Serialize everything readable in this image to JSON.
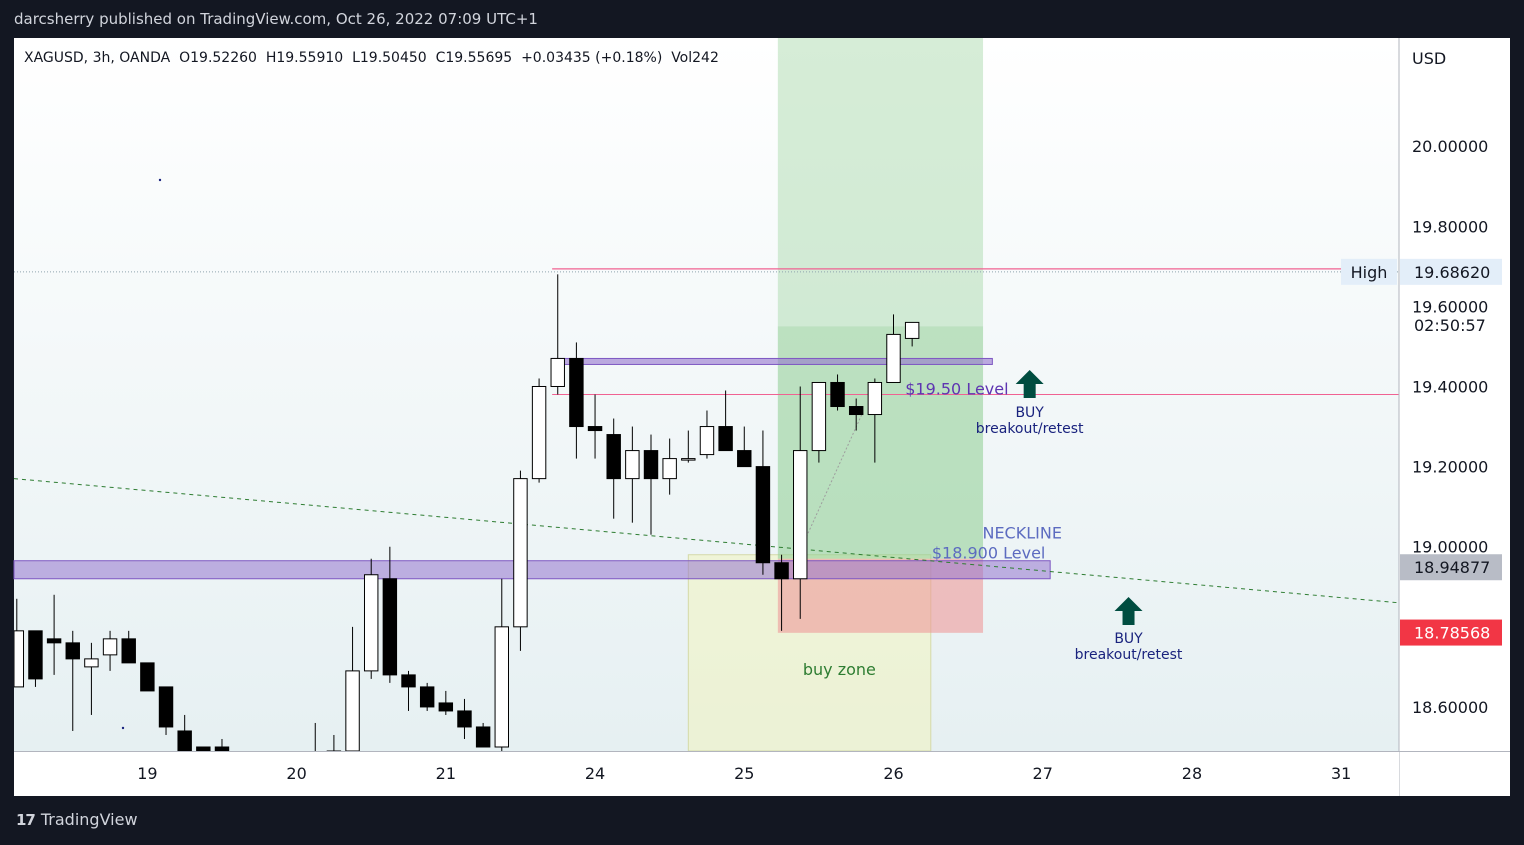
{
  "header": {
    "published": "darcsherry published on TradingView.com, Oct 26, 2022 07:09 UTC+1"
  },
  "legend": {
    "symbol": "XAGUSD, 3h, OANDA",
    "open": "O19.52260",
    "high": "H19.55910",
    "low": "L19.50450",
    "close": "C19.55695",
    "change": "+0.03435 (+0.18%)",
    "volume": "Vol242"
  },
  "footer": {
    "brand": "TradingView",
    "logo": "tradingview-logo-icon"
  },
  "chart_data": {
    "type": "candlestick",
    "currency": "USD",
    "y_axis": {
      "ticks": [
        "20.00000",
        "19.80000",
        "19.60000",
        "19.40000",
        "19.20000",
        "19.00000",
        "18.60000"
      ],
      "range": [
        18.49,
        20.27
      ]
    },
    "x_axis": {
      "ticks": [
        {
          "label": "19",
          "i": 8
        },
        {
          "label": "20",
          "i": 16
        },
        {
          "label": "21",
          "i": 24
        },
        {
          "label": "24",
          "i": 32
        },
        {
          "label": "25",
          "i": 40
        },
        {
          "label": "26",
          "i": 48
        },
        {
          "label": "27",
          "i": 56
        },
        {
          "label": "28",
          "i": 64
        },
        {
          "label": "31",
          "i": 72
        }
      ],
      "visible_index_range": [
        0.85,
        75.1
      ]
    },
    "candles": [
      {
        "i": 0,
        "o": 18.79,
        "h": 18.79,
        "l": 18.64,
        "c": 18.64
      },
      {
        "i": 1,
        "o": 18.65,
        "h": 18.87,
        "l": 18.65,
        "c": 18.79
      },
      {
        "i": 2,
        "o": 18.79,
        "h": 18.79,
        "l": 18.65,
        "c": 18.67
      },
      {
        "i": 3,
        "o": 18.77,
        "h": 18.88,
        "l": 18.68,
        "c": 18.76
      },
      {
        "i": 4,
        "o": 18.76,
        "h": 18.79,
        "l": 18.54,
        "c": 18.72
      },
      {
        "i": 5,
        "o": 18.7,
        "h": 18.76,
        "l": 18.58,
        "c": 18.72
      },
      {
        "i": 6,
        "o": 18.73,
        "h": 18.79,
        "l": 18.69,
        "c": 18.77
      },
      {
        "i": 7,
        "o": 18.77,
        "h": 18.79,
        "l": 18.71,
        "c": 18.71
      },
      {
        "i": 8,
        "o": 18.71,
        "h": 18.71,
        "l": 18.64,
        "c": 18.64
      },
      {
        "i": 9,
        "o": 18.65,
        "h": 18.65,
        "l": 18.53,
        "c": 18.55
      },
      {
        "i": 10,
        "o": 18.54,
        "h": 18.58,
        "l": 18.43,
        "c": 18.46
      },
      {
        "i": 11,
        "o": 18.5,
        "h": 18.5,
        "l": 18.49,
        "c": 18.49
      },
      {
        "i": 12,
        "o": 18.5,
        "h": 18.52,
        "l": 18.49,
        "c": 18.49
      },
      {
        "i": 13,
        "o": 18.48,
        "h": 18.49,
        "l": 18.45,
        "c": 18.46
      },
      {
        "i": 14,
        "o": 18.47,
        "h": 18.48,
        "l": 18.45,
        "c": 18.46
      },
      {
        "i": 15,
        "o": 18.47,
        "h": 18.48,
        "l": 18.46,
        "c": 18.47
      },
      {
        "i": 16,
        "o": 18.47,
        "h": 18.48,
        "l": 18.46,
        "c": 18.47
      },
      {
        "i": 17,
        "o": 18.47,
        "h": 18.56,
        "l": 18.46,
        "c": 18.48
      },
      {
        "i": 18,
        "o": 18.48,
        "h": 18.53,
        "l": 18.46,
        "c": 18.49
      },
      {
        "i": 19,
        "o": 18.49,
        "h": 18.8,
        "l": 18.47,
        "c": 18.69
      },
      {
        "i": 20,
        "o": 18.69,
        "h": 18.97,
        "l": 18.67,
        "c": 18.93
      },
      {
        "i": 21,
        "o": 18.92,
        "h": 19.0,
        "l": 18.66,
        "c": 18.68
      },
      {
        "i": 22,
        "o": 18.68,
        "h": 18.69,
        "l": 18.59,
        "c": 18.65
      },
      {
        "i": 23,
        "o": 18.65,
        "h": 18.66,
        "l": 18.59,
        "c": 18.6
      },
      {
        "i": 24,
        "o": 18.61,
        "h": 18.64,
        "l": 18.58,
        "c": 18.59
      },
      {
        "i": 25,
        "o": 18.59,
        "h": 18.62,
        "l": 18.52,
        "c": 18.55
      },
      {
        "i": 26,
        "o": 18.55,
        "h": 18.56,
        "l": 18.5,
        "c": 18.5
      },
      {
        "i": 27,
        "o": 18.5,
        "h": 18.92,
        "l": 18.47,
        "c": 18.8
      },
      {
        "i": 28,
        "o": 18.8,
        "h": 19.19,
        "l": 18.74,
        "c": 19.17
      },
      {
        "i": 29,
        "o": 19.17,
        "h": 19.42,
        "l": 19.16,
        "c": 19.4
      },
      {
        "i": 30,
        "o": 19.4,
        "h": 19.68,
        "l": 19.38,
        "c": 19.47
      },
      {
        "i": 31,
        "o": 19.47,
        "h": 19.51,
        "l": 19.22,
        "c": 19.3
      },
      {
        "i": 32,
        "o": 19.3,
        "h": 19.38,
        "l": 19.22,
        "c": 19.29
      },
      {
        "i": 33,
        "o": 19.28,
        "h": 19.32,
        "l": 19.07,
        "c": 19.17
      },
      {
        "i": 34,
        "o": 19.17,
        "h": 19.3,
        "l": 19.06,
        "c": 19.24
      },
      {
        "i": 35,
        "o": 19.24,
        "h": 19.28,
        "l": 19.03,
        "c": 19.17
      },
      {
        "i": 36,
        "o": 19.17,
        "h": 19.27,
        "l": 19.13,
        "c": 19.22
      },
      {
        "i": 37,
        "o": 19.22,
        "h": 19.29,
        "l": 19.21,
        "c": 19.22
      },
      {
        "i": 38,
        "o": 19.23,
        "h": 19.34,
        "l": 19.22,
        "c": 19.3
      },
      {
        "i": 39,
        "o": 19.3,
        "h": 19.39,
        "l": 19.25,
        "c": 19.24
      },
      {
        "i": 40,
        "o": 19.24,
        "h": 19.3,
        "l": 19.2,
        "c": 19.2
      },
      {
        "i": 41,
        "o": 19.2,
        "h": 19.29,
        "l": 18.93,
        "c": 18.96
      },
      {
        "i": 42,
        "o": 18.96,
        "h": 18.98,
        "l": 18.79,
        "c": 18.92
      },
      {
        "i": 43,
        "o": 18.92,
        "h": 19.4,
        "l": 18.82,
        "c": 19.24
      },
      {
        "i": 44,
        "o": 19.24,
        "h": 19.41,
        "l": 19.21,
        "c": 19.41
      },
      {
        "i": 45,
        "o": 19.41,
        "h": 19.43,
        "l": 19.34,
        "c": 19.35
      },
      {
        "i": 46,
        "o": 19.35,
        "h": 19.37,
        "l": 19.29,
        "c": 19.33
      },
      {
        "i": 47,
        "o": 19.33,
        "h": 19.42,
        "l": 19.21,
        "c": 19.41
      },
      {
        "i": 48,
        "o": 19.41,
        "h": 19.58,
        "l": 19.41,
        "c": 19.53
      },
      {
        "i": 49,
        "o": 19.52,
        "h": 19.56,
        "l": 19.5,
        "c": 19.56
      }
    ],
    "price_labels": [
      {
        "label": "High",
        "value": "19.68620",
        "y": 19.6862,
        "kind": "high"
      },
      {
        "label": "",
        "value": "18.94877",
        "y": 18.94877,
        "kind": "gray"
      },
      {
        "label": "",
        "value": "18.78568",
        "y": 18.78568,
        "kind": "red"
      }
    ],
    "countdown": "02:50:57",
    "annotations": {
      "level_1950": "$19.50 Level",
      "neckline": "NECKLINE",
      "level_18900": "$18.900 Level",
      "buy_zone": "buy zone",
      "buy_1": {
        "title": "BUY",
        "sub": "breakout/retest"
      },
      "buy_2": {
        "title": "BUY",
        "sub": "breakout/retest"
      }
    },
    "drawings": {
      "high_line": {
        "y": 19.6862,
        "color": "#f06292"
      },
      "mid_pink_line": {
        "y": 19.38,
        "color": "#f06292"
      },
      "level_1950_band": {
        "y1": 19.455,
        "y2": 19.47,
        "x_from": 29.7,
        "x_to": 53.3,
        "color": "#9575cd"
      },
      "neckline_band": {
        "y1": 18.92,
        "y2": 18.965,
        "x_from": 0.85,
        "x_to": 56.4,
        "color": "#9575cd"
      },
      "trendline": {
        "from": {
          "x": 0.85,
          "y": 19.17
        },
        "to": {
          "x": 75.1,
          "y": 18.86
        }
      },
      "buy_zone_box": {
        "x1": 37.0,
        "x2": 50.0,
        "y1": 18.49,
        "y2": 18.98,
        "color": "#f0f4c3"
      },
      "long_position": {
        "x1": 41.8,
        "x2": 52.8,
        "entry": 18.97,
        "stop": 18.785,
        "target": 20.27
      }
    },
    "grid": false,
    "colors": {
      "up": "#ffffff",
      "down": "#000000",
      "outline": "#000000"
    }
  }
}
